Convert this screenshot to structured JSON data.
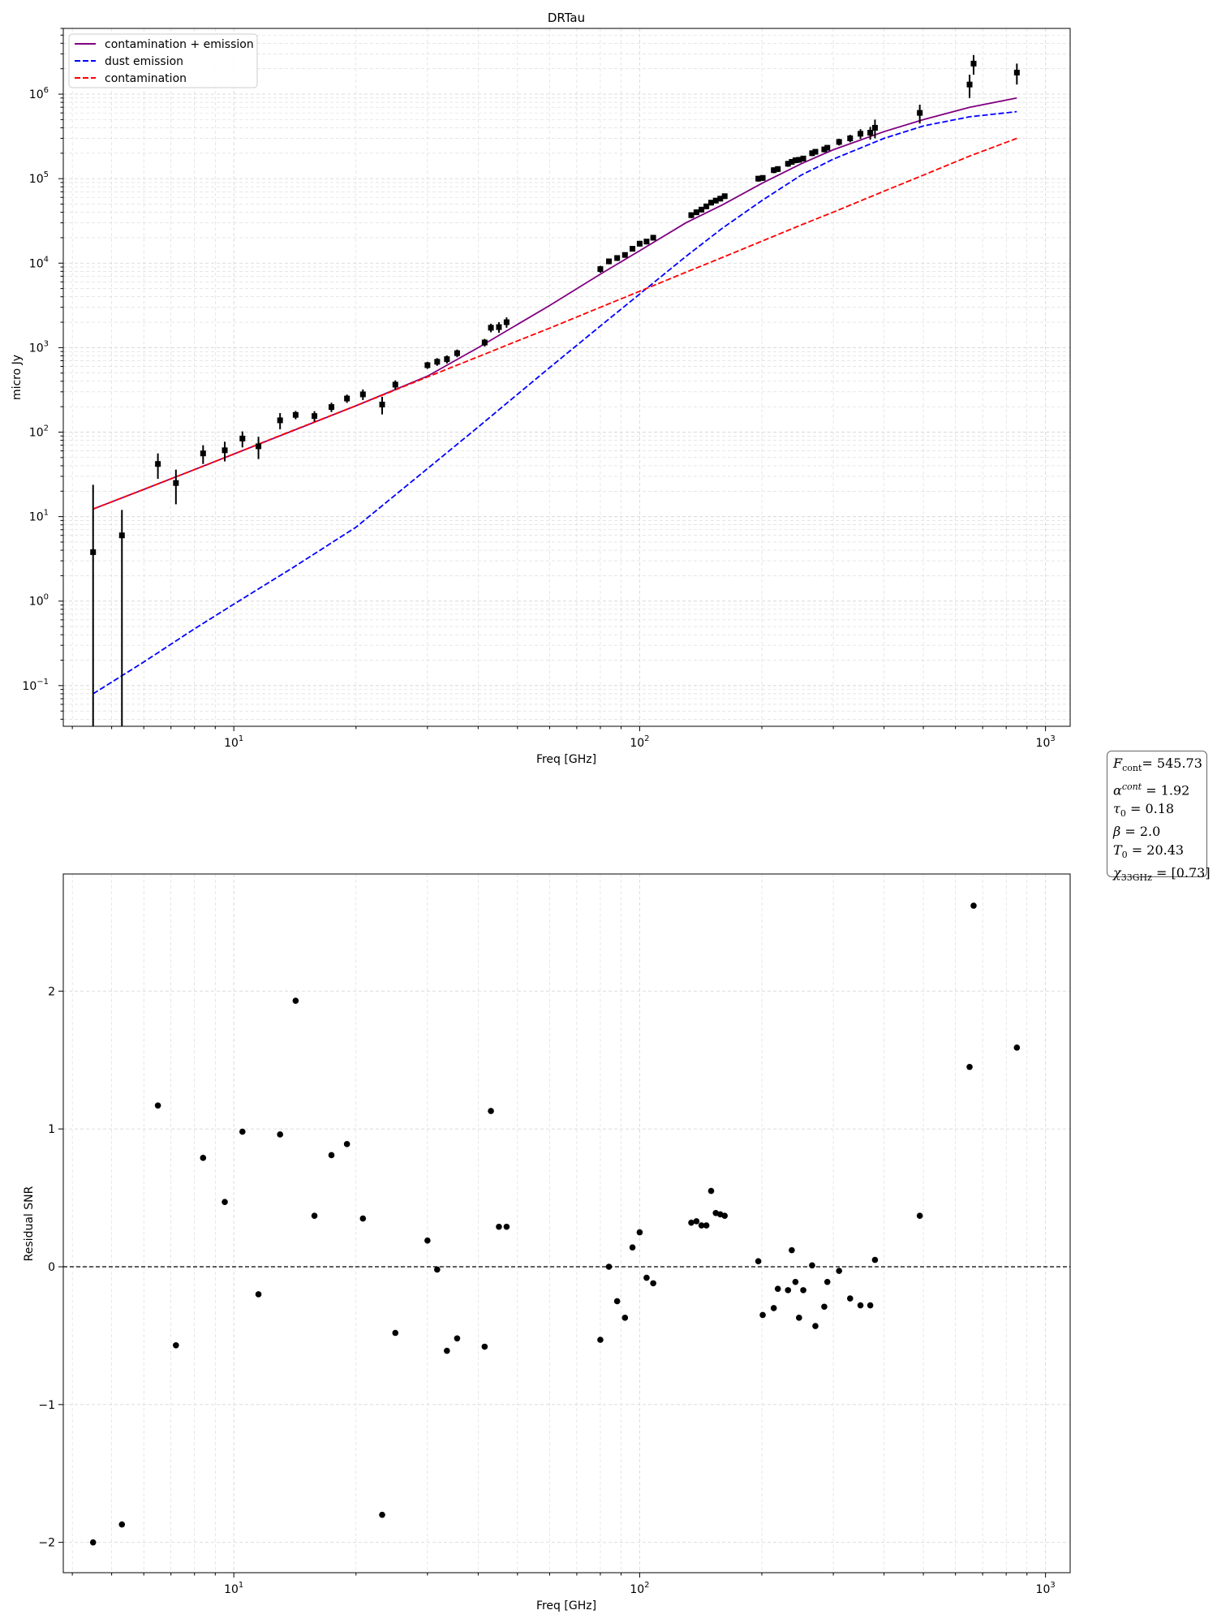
{
  "chart_data": [
    {
      "type": "line",
      "title": "DRTau",
      "xlabel": "Freq [GHz]",
      "ylabel": "micro Jy",
      "xscale": "log",
      "yscale": "log",
      "xlim": [
        3.8,
        1150
      ],
      "ylim": [
        0.033,
        6000000
      ],
      "x_tick_labels": [
        "10",
        "10",
        "10"
      ],
      "x_tick_exponents": [
        "1",
        "2",
        "3"
      ],
      "x_tick_values": [
        10,
        100,
        1000
      ],
      "y_tick_labels": [
        "10",
        "10",
        "10",
        "10",
        "10",
        "10",
        "10",
        "10"
      ],
      "y_tick_exponents": [
        "−1",
        "0",
        "1",
        "2",
        "3",
        "4",
        "5",
        "6"
      ],
      "y_tick_values": [
        0.1,
        1,
        10,
        100,
        1000,
        10000,
        100000,
        1000000
      ],
      "grid": true,
      "legend_position": "top-left",
      "series": [
        {
          "name": "contamination + emission",
          "style": "solid",
          "color": "#800080",
          "x": [
            4.5,
            6,
            8,
            10,
            14,
            20,
            30,
            40,
            50,
            60,
            80,
            100,
            130,
            160,
            200,
            250,
            300,
            400,
            500,
            650,
            850
          ],
          "y": [
            12.3,
            21,
            36,
            55,
            104,
            205,
            460,
            1000,
            1880,
            3150,
            7400,
            14000,
            30000,
            49000,
            88000,
            150000,
            220000,
            360000,
            500000,
            700000,
            900000
          ]
        },
        {
          "name": "dust emission",
          "style": "dashed",
          "color": "#0000ff",
          "x": [
            4.5,
            6,
            8,
            10,
            14,
            20,
            30,
            40,
            50,
            60,
            80,
            100,
            130,
            160,
            200,
            250,
            300,
            400,
            500,
            650,
            850
          ],
          "y": [
            0.08,
            0.19,
            0.47,
            0.92,
            2.5,
            7.5,
            37,
            115,
            280,
            580,
            1800,
            4300,
            12000,
            26000,
            55000,
            110000,
            170000,
            300000,
            420000,
            540000,
            620000
          ]
        },
        {
          "name": "contamination",
          "style": "dashed",
          "color": "#ff0000",
          "x": [
            4.5,
            6,
            8,
            10,
            14,
            20,
            30,
            40,
            50,
            60,
            80,
            100,
            130,
            160,
            200,
            250,
            300,
            400,
            500,
            650,
            850
          ],
          "y": [
            12.3,
            21,
            36,
            55,
            105,
            205,
            450,
            780,
            1200,
            1700,
            3000,
            4650,
            7800,
            11700,
            18200,
            28300,
            40200,
            71000,
            110000,
            185000,
            300000
          ]
        },
        {
          "name": "",
          "style": "points",
          "color": "#000000",
          "x": [
            4.5,
            5.3,
            6.5,
            7.2,
            8.4,
            9.5,
            10.5,
            11.5,
            13,
            14.2,
            15.8,
            17.4,
            19,
            20.8,
            23.2,
            25,
            30,
            31.7,
            33.5,
            35.5,
            41.5,
            43,
            45,
            47,
            80,
            84,
            88,
            92,
            96,
            100,
            104,
            108,
            134,
            138,
            142,
            146,
            150,
            154,
            158,
            162,
            196,
            201,
            214,
            219,
            232,
            237,
            242,
            247,
            253,
            266,
            271,
            285,
            290,
            310,
            330,
            350,
            370,
            380,
            490,
            650,
            665,
            850
          ],
          "y": [
            3.8,
            6.0,
            42,
            25,
            56,
            61,
            84,
            68,
            138,
            160,
            155,
            198,
            250,
            280,
            212,
            365,
            620,
            680,
            730,
            860,
            1150,
            1720,
            1750,
            2000,
            8500,
            10500,
            11500,
            12500,
            14800,
            17000,
            18000,
            20000,
            37000,
            40000,
            43000,
            47000,
            52000,
            55000,
            58000,
            62000,
            100000,
            102000,
            126000,
            130000,
            150000,
            158000,
            165000,
            167000,
            173000,
            200000,
            208000,
            222000,
            232000,
            272000,
            300000,
            340000,
            350000,
            400000,
            600000,
            1300000,
            2300000,
            1800000
          ],
          "yerr": [
            20,
            6,
            14,
            11,
            14,
            16,
            18,
            20,
            30,
            18,
            22,
            25,
            28,
            40,
            50,
            45,
            60,
            70,
            80,
            90,
            120,
            200,
            250,
            280,
            800,
            800,
            900,
            900,
            1100,
            1300,
            1300,
            1500,
            3000,
            3000,
            3300,
            3500,
            3800,
            4000,
            4200,
            4500,
            8000,
            8000,
            10000,
            10000,
            12000,
            12000,
            13000,
            13000,
            13000,
            15000,
            15000,
            17000,
            17000,
            25000,
            30000,
            45000,
            60000,
            100000,
            150000,
            400000,
            600000,
            500000
          ]
        }
      ]
    },
    {
      "type": "scatter",
      "title": "",
      "xlabel": "Freq [GHz]",
      "ylabel": "Residual SNR",
      "xscale": "log",
      "xlim": [
        3.8,
        1150
      ],
      "ylim": [
        -2.22,
        2.85
      ],
      "x_tick_labels": [
        "10",
        "10",
        "10"
      ],
      "x_tick_exponents": [
        "1",
        "2",
        "3"
      ],
      "x_tick_values": [
        10,
        100,
        1000
      ],
      "y_tick_labels": [
        "−2",
        "−1",
        "0",
        "1",
        "2"
      ],
      "y_tick_values": [
        -2,
        -1,
        0,
        1,
        2
      ],
      "grid": true,
      "reference_line_y": 0,
      "series": [
        {
          "name": "",
          "color": "#000000",
          "x": [
            4.5,
            5.3,
            6.5,
            7.2,
            8.4,
            9.5,
            10.5,
            11.5,
            13,
            14.2,
            15.8,
            17.4,
            19,
            20.8,
            23.2,
            25,
            30,
            31.7,
            33.5,
            35.5,
            41.5,
            43,
            45,
            47,
            80,
            84,
            88,
            92,
            96,
            100,
            104,
            108,
            134,
            138,
            142,
            146,
            150,
            154,
            158,
            162,
            196,
            201,
            214,
            219,
            232,
            237,
            242,
            247,
            253,
            266,
            271,
            285,
            290,
            310,
            330,
            350,
            370,
            380,
            490,
            650,
            665,
            850
          ],
          "y": [
            -2.0,
            -1.87,
            1.17,
            -0.57,
            0.79,
            0.47,
            0.98,
            -0.2,
            0.96,
            1.93,
            0.37,
            0.81,
            0.89,
            0.35,
            -1.8,
            -0.48,
            0.19,
            -0.02,
            -0.61,
            -0.52,
            -0.58,
            1.13,
            0.29,
            0.29,
            -0.53,
            0.0,
            -0.25,
            -0.37,
            0.14,
            0.25,
            -0.08,
            -0.12,
            0.32,
            0.33,
            0.3,
            0.3,
            0.55,
            0.39,
            0.38,
            0.37,
            0.04,
            -0.35,
            -0.3,
            -0.16,
            -0.17,
            0.12,
            -0.11,
            -0.37,
            -0.17,
            0.01,
            -0.43,
            -0.29,
            -0.11,
            -0.03,
            -0.23,
            -0.28,
            -0.28,
            0.05,
            0.37,
            1.45,
            2.62,
            1.59
          ]
        }
      ]
    }
  ],
  "params": {
    "f_cont_sym": "F",
    "f_cont_sub": "cont",
    "f_cont_val": "= 545.73",
    "alpha_sym": "α",
    "alpha_sup": "cont",
    "alpha_val": "= 1.92",
    "tau_sym": "τ",
    "tau_sub": "0",
    "tau_val": "= 0.18",
    "beta_sym": "β",
    "beta_val": "= 2.0",
    "t_sym": "T",
    "t_sub": "0",
    "t_val": "= 20.43",
    "chi_sym": "χ",
    "chi_sub": "33GHz",
    "chi_val": "= [0.73]"
  }
}
